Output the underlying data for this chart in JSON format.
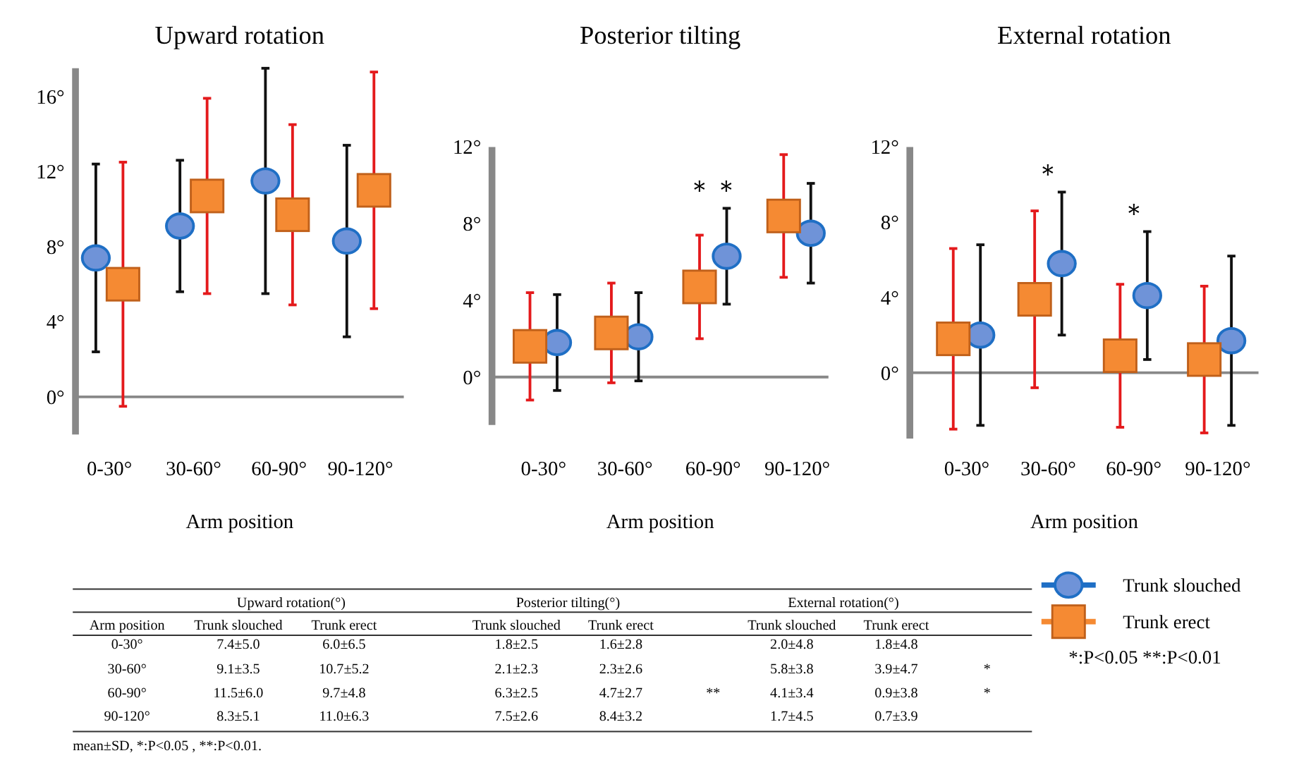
{
  "chart_data": [
    {
      "type": "scatter",
      "title": "Upward rotation",
      "xlabel": "Arm position",
      "categories": [
        "0-30°",
        "30-60°",
        "60-90°",
        "90-120°"
      ],
      "ylim": [
        -2,
        17.5
      ],
      "yticks": [
        {
          "value": 0,
          "label": "0°"
        },
        {
          "value": 4,
          "label": "4°"
        },
        {
          "value": 8,
          "label": "8°"
        },
        {
          "value": 12,
          "label": "12°"
        },
        {
          "value": 16,
          "label": "16°"
        }
      ],
      "series": [
        {
          "name": "Trunk slouched",
          "color": "#6f93d8",
          "marker": "circle",
          "values": [
            7.4,
            9.1,
            11.5,
            8.3
          ],
          "errors": [
            5.0,
            3.5,
            6.0,
            5.1
          ]
        },
        {
          "name": "Trunk erect",
          "color": "#f58a33",
          "marker": "square",
          "values": [
            6.0,
            10.7,
            9.7,
            11.0
          ],
          "errors": [
            6.5,
            5.2,
            4.8,
            6.3
          ]
        }
      ],
      "legend": "bottom right"
    },
    {
      "type": "scatter",
      "title": "Posterior tilting",
      "xlabel": "Arm position",
      "categories": [
        "0-30°",
        "30-60°",
        "60-90°",
        "90-120°"
      ],
      "ylim": [
        -2.5,
        12
      ],
      "yticks": [
        {
          "value": 0,
          "label": "0°"
        },
        {
          "value": 4,
          "label": "4°"
        },
        {
          "value": 8,
          "label": "8°"
        },
        {
          "value": 12,
          "label": "12°"
        }
      ],
      "series": [
        {
          "color": "#6f93d8",
          "marker": "circle",
          "values": [
            1.8,
            2.1,
            6.3,
            7.5
          ],
          "errors": [
            2.5,
            2.3,
            2.5,
            2.6
          ]
        },
        {
          "color": "#f58a33",
          "marker": "square",
          "values": [
            1.6,
            2.3,
            4.7,
            8.4
          ],
          "errors": [
            2.8,
            2.6,
            2.7,
            3.2
          ]
        }
      ],
      "annotations": [
        "＊＊"
      ]
    },
    {
      "type": "scatter",
      "title": "External rotation",
      "xlabel": "Arm position",
      "categories": [
        "0-30°",
        "30-60°",
        "60-90°",
        "90-120°"
      ],
      "ylim": [
        -3.5,
        12
      ],
      "yticks": [
        {
          "value": 0,
          "label": "0°"
        },
        {
          "value": 4,
          "label": "4°"
        },
        {
          "value": 8,
          "label": "8°"
        },
        {
          "value": 12,
          "label": "12°"
        }
      ],
      "series": [
        {
          "color": "#6f93d8",
          "marker": "circle",
          "values": [
            2.0,
            5.8,
            4.1,
            1.7
          ],
          "errors": [
            4.8,
            3.8,
            3.4,
            4.5
          ]
        },
        {
          "color": "#f58a33",
          "marker": "square",
          "values": [
            1.8,
            3.9,
            0.9,
            0.7
          ],
          "errors": [
            4.8,
            4.7,
            3.8,
            3.9
          ]
        }
      ],
      "annotations": [
        "＊",
        "＊"
      ]
    },
    {
      "type": "other",
      "annotations": [
        "Upward rotation(°)",
        "Posterior tilting(°)",
        "External rotation(°)",
        "Arm position",
        "Trunk slouched",
        "Trunk erect",
        "Trunk slouched",
        "Trunk erect",
        "Trunk slouched",
        "Trunk erect",
        "0-30°",
        "7.4±5.0",
        "6.0±6.5",
        "1.8±2.5",
        "1.6±2.8",
        "2.0±4.8",
        "1.8±4.8",
        "30-60°",
        "9.1±3.5",
        "10.7±5.2",
        "2.1±2.3",
        "2.3±2.6",
        "5.8±3.8",
        "3.9±4.7",
        "*",
        "60-90°",
        "11.5±6.0",
        "9.7±4.8",
        "6.3±2.5",
        "4.7±2.7",
        "**",
        "4.1±3.4",
        "0.9±3.8",
        "*",
        "90-120°",
        "8.3±5.1",
        "11.0±6.3",
        "7.5±2.6",
        "8.4±3.2",
        "1.7±4.5",
        "0.7±3.9",
        "mean±SD,  *:P<0.05 ,  **:P<0.01.",
        "*:P<0.05   **:P<0.01"
      ]
    }
  ]
}
